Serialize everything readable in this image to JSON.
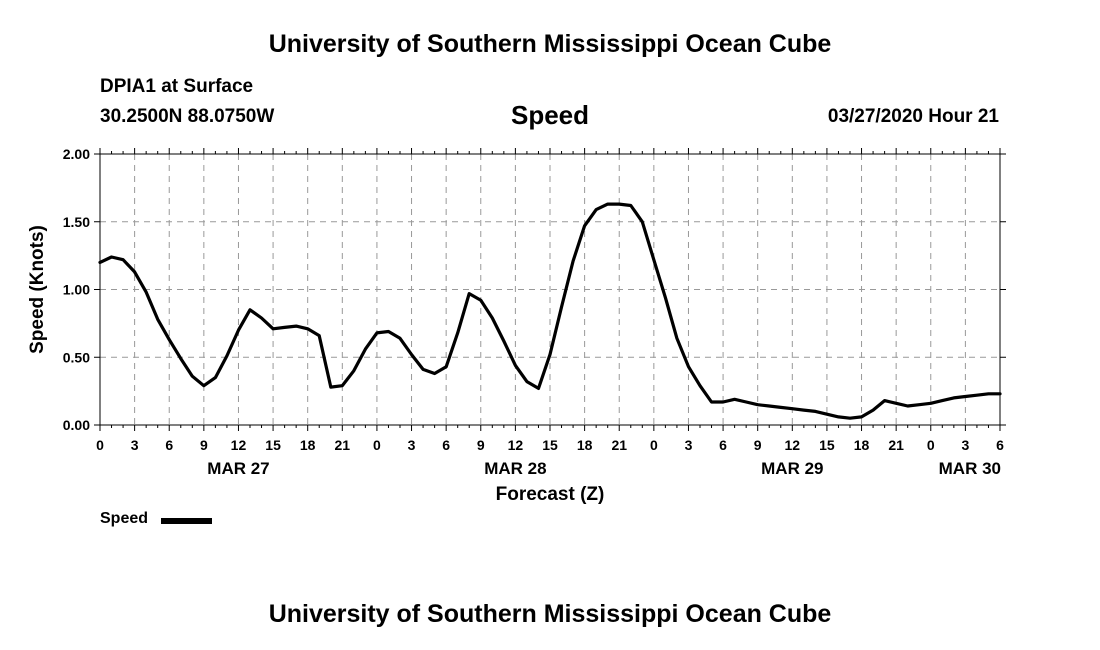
{
  "header": {
    "title": "University of Southern Mississippi Ocean Cube",
    "station": "DPIA1 at Surface",
    "location": "30.2500N 88.0750W",
    "variable": "Speed",
    "datetime": "03/27/2020 Hour 21"
  },
  "footer": {
    "title": "University of Southern Mississippi Ocean Cube"
  },
  "legend": {
    "label": "Speed",
    "color": "#000000"
  },
  "chart_data": {
    "type": "line",
    "title": "Speed",
    "xlabel": "Forecast (Z)",
    "ylabel": "Speed (Knots)",
    "ylim": [
      0,
      2.0
    ],
    "xlim": [
      0,
      78
    ],
    "x_unit": "hours since MAR 27 00Z",
    "yticks": [
      "0.00",
      "0.50",
      "1.00",
      "1.50",
      "2.00"
    ],
    "xtick_labels": [
      "0",
      "3",
      "6",
      "9",
      "12",
      "15",
      "18",
      "21",
      "0",
      "3",
      "6",
      "9",
      "12",
      "15",
      "18",
      "21",
      "0",
      "3",
      "6",
      "9",
      "12",
      "15",
      "18",
      "21",
      "0",
      "3",
      "6"
    ],
    "day_labels": [
      {
        "label": "MAR 27",
        "hour": 12
      },
      {
        "label": "MAR 28",
        "hour": 36
      },
      {
        "label": "MAR 29",
        "hour": 60
      },
      {
        "label": "MAR 30",
        "hour": 78
      }
    ],
    "grid": true,
    "series": [
      {
        "name": "Speed",
        "x": [
          0,
          1,
          2,
          3,
          4,
          5,
          6,
          7,
          8,
          9,
          10,
          11,
          12,
          13,
          14,
          15,
          16,
          17,
          18,
          19,
          20,
          21,
          22,
          23,
          24,
          25,
          26,
          27,
          28,
          29,
          30,
          31,
          32,
          33,
          34,
          35,
          36,
          37,
          38,
          39,
          40,
          41,
          42,
          43,
          44,
          45,
          46,
          47,
          48,
          49,
          50,
          51,
          52,
          53,
          54,
          55,
          56,
          57,
          58,
          59,
          60,
          61,
          62,
          63,
          64,
          65,
          66,
          67,
          68,
          69,
          70,
          71,
          72,
          73,
          74,
          75,
          76,
          77,
          78
        ],
        "values": [
          1.2,
          1.24,
          1.22,
          1.13,
          0.98,
          0.78,
          0.63,
          0.49,
          0.36,
          0.29,
          0.35,
          0.51,
          0.7,
          0.85,
          0.79,
          0.71,
          0.72,
          0.73,
          0.71,
          0.66,
          0.28,
          0.29,
          0.4,
          0.56,
          0.68,
          0.69,
          0.64,
          0.52,
          0.41,
          0.38,
          0.43,
          0.68,
          0.97,
          0.92,
          0.79,
          0.62,
          0.44,
          0.32,
          0.27,
          0.52,
          0.87,
          1.21,
          1.47,
          1.59,
          1.63,
          1.63,
          1.62,
          1.5,
          1.22,
          0.94,
          0.64,
          0.43,
          0.29,
          0.17,
          0.17,
          0.19,
          0.17,
          0.15,
          0.14,
          0.13,
          0.12,
          0.11,
          0.1,
          0.08,
          0.06,
          0.05,
          0.06,
          0.11,
          0.18,
          0.16,
          0.14,
          0.15,
          0.16,
          0.18,
          0.2,
          0.21,
          0.22,
          0.23,
          0.23
        ]
      }
    ]
  }
}
